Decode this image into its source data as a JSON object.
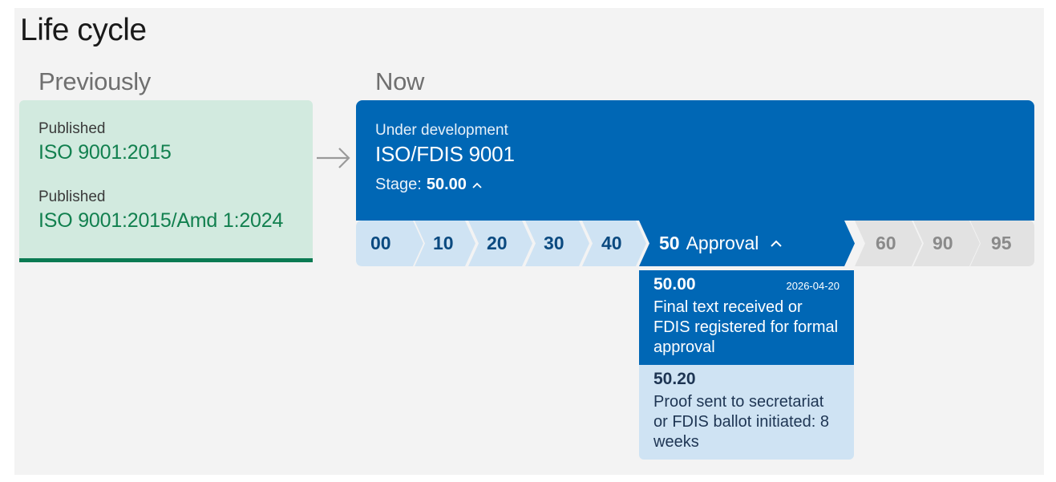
{
  "page": {
    "title": "Life cycle"
  },
  "previously": {
    "label": "Previously",
    "items": [
      {
        "status": "Published",
        "reference": "ISO 9001:2015"
      },
      {
        "status": "Published",
        "reference": "ISO 9001:2015/Amd 1:2024"
      }
    ]
  },
  "now": {
    "label": "Now",
    "status": "Under development",
    "reference": "ISO/FDIS 9001",
    "stage_prefix": "Stage:",
    "stage_value": "50.00"
  },
  "stages": [
    {
      "code": "00",
      "state": "done"
    },
    {
      "code": "10",
      "state": "done"
    },
    {
      "code": "20",
      "state": "done"
    },
    {
      "code": "30",
      "state": "done"
    },
    {
      "code": "40",
      "state": "done"
    },
    {
      "code": "50",
      "name": "Approval",
      "state": "current"
    },
    {
      "code": "60",
      "state": "future"
    },
    {
      "code": "90",
      "state": "future"
    },
    {
      "code": "95",
      "state": "future"
    }
  ],
  "substages": [
    {
      "code": "50.00",
      "date": "2026-04-20",
      "description": "Final text received or FDIS registered for formal approval",
      "state": "current"
    },
    {
      "code": "50.20",
      "description": "Proof sent to secretariat or FDIS ballot initiated: 8 weeks",
      "state": "next"
    }
  ],
  "colors": {
    "primary": "#0067b5",
    "published_bg": "#d2eadf",
    "published_text": "#12804f",
    "stage_done_bg": "#cfe3f3",
    "stage_future_bg": "#e2e2e2"
  }
}
